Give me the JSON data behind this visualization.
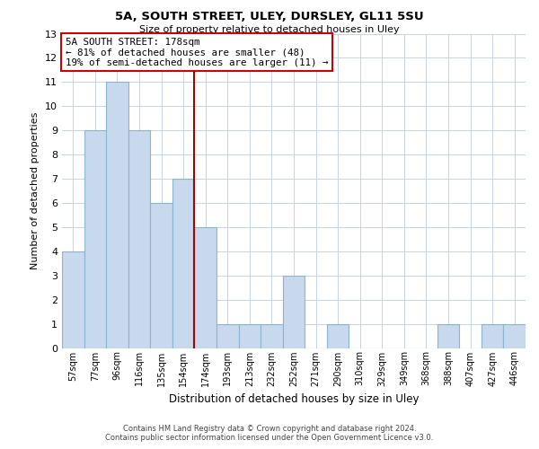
{
  "title": "5A, SOUTH STREET, ULEY, DURSLEY, GL11 5SU",
  "subtitle": "Size of property relative to detached houses in Uley",
  "xlabel": "Distribution of detached houses by size in Uley",
  "ylabel": "Number of detached properties",
  "bar_labels": [
    "57sqm",
    "77sqm",
    "96sqm",
    "116sqm",
    "135sqm",
    "154sqm",
    "174sqm",
    "193sqm",
    "213sqm",
    "232sqm",
    "252sqm",
    "271sqm",
    "290sqm",
    "310sqm",
    "329sqm",
    "349sqm",
    "368sqm",
    "388sqm",
    "407sqm",
    "427sqm",
    "446sqm"
  ],
  "bar_values": [
    4,
    9,
    11,
    9,
    6,
    7,
    5,
    1,
    1,
    1,
    3,
    0,
    1,
    0,
    0,
    0,
    0,
    1,
    0,
    1,
    1
  ],
  "bar_color": "#c8d8ed",
  "bar_edge_color": "#8ab4cf",
  "highlight_line_color": "#aa0000",
  "ylim": [
    0,
    13
  ],
  "yticks": [
    0,
    1,
    2,
    3,
    4,
    5,
    6,
    7,
    8,
    9,
    10,
    11,
    12,
    13
  ],
  "annotation_title": "5A SOUTH STREET: 178sqm",
  "annotation_line1": "← 81% of detached houses are smaller (48)",
  "annotation_line2": "19% of semi-detached houses are larger (11) →",
  "annotation_box_color": "#ffffff",
  "annotation_box_edge_color": "#cc0000",
  "footer_line1": "Contains HM Land Registry data © Crown copyright and database right 2024.",
  "footer_line2": "Contains public sector information licensed under the Open Government Licence v3.0.",
  "background_color": "#ffffff",
  "grid_color": "#c8d4e0"
}
